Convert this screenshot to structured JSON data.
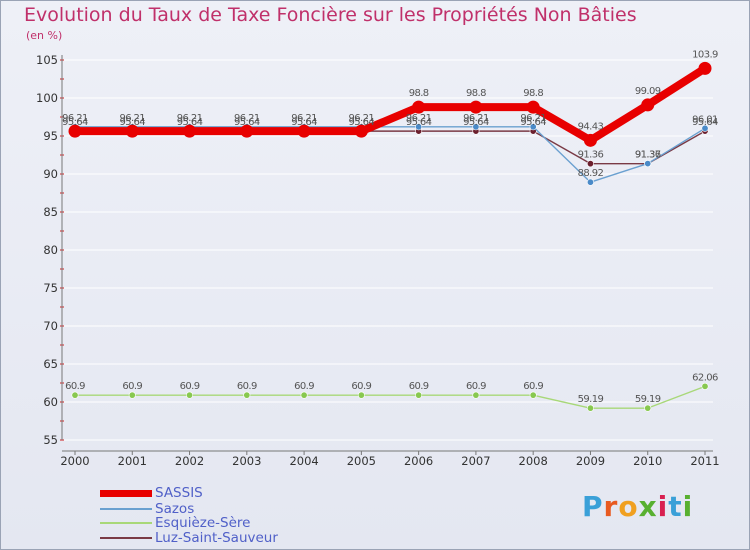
{
  "header": {
    "title": "Evolution du Taux de Taxe Foncière sur les Propriétés Non Bâties",
    "subtitle": "(en %)"
  },
  "logo": {
    "text": "Proxiti"
  },
  "chart_data": {
    "type": "line",
    "title": "Evolution du Taux de Taxe Foncière sur les Propriétés Non Bâties",
    "ylabel": "(en %)",
    "xlabel": "",
    "ylim": [
      55,
      105
    ],
    "yticks": [
      55,
      60,
      65,
      70,
      75,
      80,
      85,
      90,
      95,
      100,
      105
    ],
    "categories": [
      "2000",
      "2001",
      "2002",
      "2003",
      "2004",
      "2005",
      "2006",
      "2007",
      "2008",
      "2009",
      "2010",
      "2011"
    ],
    "series": [
      {
        "name": "Luz-Saint-Sauveur",
        "color": "#7a3a45",
        "marker_color": "#6b1f2e",
        "values": [
          95.64,
          95.64,
          95.64,
          95.64,
          95.64,
          95.64,
          95.64,
          95.64,
          95.64,
          91.36,
          91.36,
          95.64
        ],
        "labels": [
          "95.64",
          "95.64",
          "95.64",
          "95.64",
          "95.64",
          "95.64",
          "95.64",
          "95.64",
          "95.64",
          "91.36",
          "91.36",
          "95.64"
        ]
      },
      {
        "name": "Sazos",
        "color": "#6aa0d0",
        "marker_color": "#4a8ac8",
        "values": [
          96.21,
          96.21,
          96.21,
          96.21,
          96.21,
          96.21,
          96.21,
          96.21,
          96.21,
          88.92,
          91.37,
          96.01
        ],
        "labels": [
          "96.21",
          "96.21",
          "96.21",
          "96.21",
          "96.21",
          "96.21",
          "96.21",
          "96.21",
          "96.21",
          "88.92",
          "91.37",
          "96.01"
        ]
      },
      {
        "name": "Esquièze-Sère",
        "color": "#a8d878",
        "marker_color": "#88c850",
        "values": [
          60.9,
          60.9,
          60.9,
          60.9,
          60.9,
          60.9,
          60.9,
          60.9,
          60.9,
          59.19,
          59.19,
          62.06
        ],
        "labels": [
          "60.9",
          "60.9",
          "60.9",
          "60.9",
          "60.9",
          "60.9",
          "60.9",
          "60.9",
          "60.9",
          "59.19",
          "59.19",
          "62.06"
        ]
      },
      {
        "name": "SASSIS",
        "color": "#e80000",
        "marker_color": "#e80000",
        "values": [
          95.64,
          95.64,
          95.64,
          95.64,
          95.64,
          95.64,
          98.8,
          98.8,
          98.8,
          94.43,
          99.09,
          103.9
        ],
        "labels": [
          "",
          "",
          "",
          "",
          "",
          "",
          "98.8",
          "98.8",
          "98.8",
          "94.43",
          "99.09",
          "103.9"
        ]
      }
    ],
    "legend": [
      "SASSIS",
      "Sazos",
      "Esquièze-Sère",
      "Luz-Saint-Sauveur"
    ]
  }
}
